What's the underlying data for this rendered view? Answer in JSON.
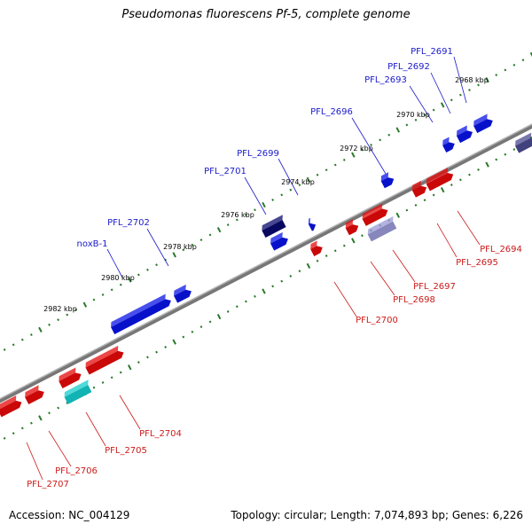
{
  "title": "Pseudomonas fluorescens Pf-5, complete genome",
  "footer": {
    "accession": "Accession: NC_004129",
    "stats": "Topology: circular; Length: 7,074,893 bp; Genes: 6,226"
  },
  "colors": {
    "forward": "#0a14e6",
    "forward_dark": "#0a0a6e",
    "reverse": "#e60a0a",
    "reverse_pale": "#9a9ad8",
    "cyan": "#14cccc",
    "backbone": "#777777",
    "ticks": "#2a7a2a"
  },
  "ruler": [
    {
      "label": "2968 kbp"
    },
    {
      "label": "2970 kbp"
    },
    {
      "label": "2972 kbp"
    },
    {
      "label": "2974 kbp"
    },
    {
      "label": "2976 kbp"
    },
    {
      "label": "2978 kbp"
    },
    {
      "label": "2980 kbp"
    },
    {
      "label": "2982 kbp"
    }
  ],
  "forward_labels": [
    {
      "name": "PFL_2691"
    },
    {
      "name": "PFL_2692"
    },
    {
      "name": "PFL_2693"
    },
    {
      "name": "PFL_2696"
    },
    {
      "name": "PFL_2699"
    },
    {
      "name": "PFL_2701"
    },
    {
      "name": "PFL_2702"
    },
    {
      "name": "noxB-1"
    }
  ],
  "reverse_labels": [
    {
      "name": "PFL_2694"
    },
    {
      "name": "PFL_2695"
    },
    {
      "name": "PFL_2697"
    },
    {
      "name": "PFL_2698"
    },
    {
      "name": "PFL_2700"
    },
    {
      "name": "PFL_2704"
    },
    {
      "name": "PFL_2705"
    },
    {
      "name": "PFL_2706"
    },
    {
      "name": "PFL_2707"
    }
  ]
}
